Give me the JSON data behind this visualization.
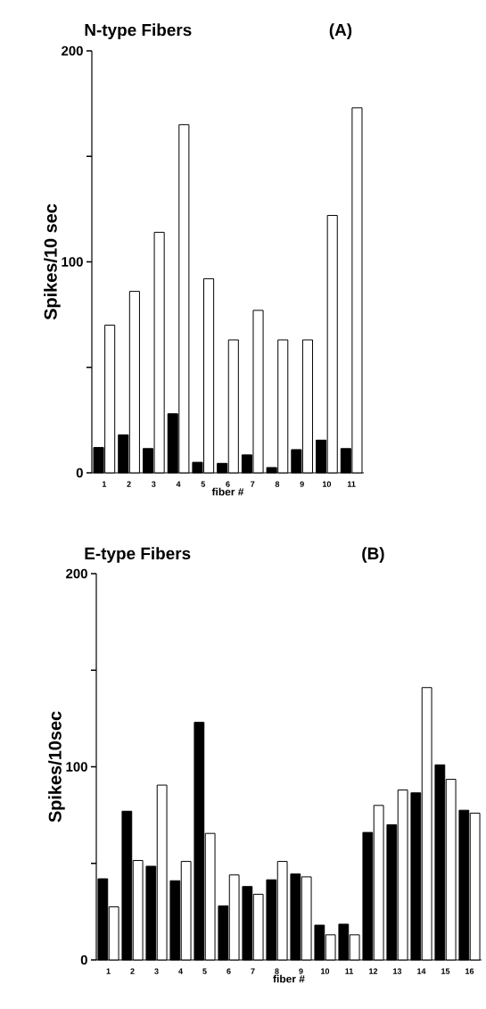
{
  "chart_data": [
    {
      "type": "bar",
      "title": "N-type Fibers",
      "annotations": [
        "(A)"
      ],
      "xlabel": "fiber #",
      "ylabel": "Spikes/10 sec",
      "categories": [
        "1",
        "2",
        "3",
        "4",
        "5",
        "6",
        "7",
        "8",
        "9",
        "10",
        "11"
      ],
      "series": [
        {
          "color": "#000000",
          "values": [
            12,
            18,
            11.5,
            28,
            5,
            4.5,
            8.5,
            2.5,
            11,
            15.5,
            11.5
          ]
        },
        {
          "color": "#ffffff",
          "values": [
            70,
            86,
            114,
            165,
            92,
            63,
            77,
            63,
            63,
            122,
            173
          ]
        }
      ],
      "ylim": [
        0,
        200
      ],
      "yticks": [
        0,
        100,
        200
      ],
      "grid": false
    },
    {
      "type": "bar",
      "title": "E-type Fibers",
      "annotations": [
        "(B)"
      ],
      "xlabel": "fiber #",
      "ylabel": "Spikes/10sec",
      "categories": [
        "1",
        "2",
        "3",
        "4",
        "5",
        "6",
        "7",
        "8",
        "9",
        "10",
        "11",
        "12",
        "13",
        "14",
        "15",
        "16"
      ],
      "series": [
        {
          "color": "#000000",
          "values": [
            42,
            77,
            48.5,
            41,
            123,
            28,
            38,
            41.5,
            44.5,
            18,
            18.5,
            66,
            70,
            86.5,
            101,
            77.5
          ]
        },
        {
          "color": "#ffffff",
          "values": [
            27.5,
            51.5,
            90.5,
            51,
            65.5,
            44,
            34,
            51,
            43,
            13,
            13,
            80,
            88,
            141,
            93.5,
            76
          ]
        }
      ],
      "ylim": [
        0,
        200
      ],
      "yticks": [
        0,
        100,
        200
      ],
      "grid": false
    }
  ]
}
